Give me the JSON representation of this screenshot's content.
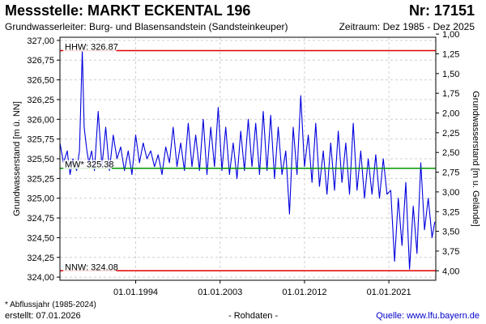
{
  "header": {
    "station": "Messstelle: MARKT ECKENTAL 196",
    "number": "Nr: 17151",
    "aquifer": "Grundwasserleiter:  Burg- und Blasensandstein (Sandsteinkeuper)",
    "period": "Zeitraum: Dez 1985 - Dez 2025"
  },
  "footer": {
    "note": "* Abflussjahr (1985-2024)",
    "created": "erstellt:  07.01.2026",
    "raw": "- Rohdaten -",
    "source": "Quelle: www.lfu.bayern.de"
  },
  "chart_data": {
    "type": "line",
    "ylabel": "Grundwasserstand [m ü. NN]",
    "y2label": "Grundwasserstand [m u. Gelände]",
    "ylim": [
      323.96,
      327.04
    ],
    "y2lim": [
      1.04,
      4.12
    ],
    "yticks": [
      324.0,
      324.25,
      324.5,
      324.75,
      325.0,
      325.25,
      325.5,
      325.75,
      326.0,
      326.25,
      326.5,
      326.75,
      327.0
    ],
    "ytick_labels": [
      "324,00",
      "324,25",
      "324,50",
      "324,75",
      "325,00",
      "325,25",
      "325,50",
      "325,75",
      "326,00",
      "326,25",
      "326,50",
      "326,75",
      "327,00"
    ],
    "y2ticks": [
      1.0,
      1.25,
      1.5,
      1.75,
      2.0,
      2.25,
      2.5,
      2.75,
      3.0,
      3.25,
      3.5,
      3.75,
      4.0
    ],
    "y2tick_labels": [
      "1,00",
      "1,25",
      "1,50",
      "1,75",
      "2,00",
      "2,25",
      "2,50",
      "2,75",
      "3,00",
      "3,25",
      "3,50",
      "3,75",
      "4,00"
    ],
    "xlim": [
      1985.92,
      2026.0
    ],
    "xticks": [
      1994.0,
      2003.0,
      2012.0,
      2021.0
    ],
    "xtick_labels": [
      "01.01.1994",
      "01.01.2003",
      "01.01.2012",
      "01.01.2021"
    ],
    "grid": true,
    "reference_lines": [
      {
        "label": "HHW: 326.87",
        "value": 326.87,
        "color": "#e00000"
      },
      {
        "label": "MW* 325.38",
        "value": 325.38,
        "color": "#009900"
      },
      {
        "label": "NNW: 324.08",
        "value": 324.08,
        "color": "#e00000"
      }
    ],
    "series": [
      {
        "color": "#0000dd",
        "x": [
          1985.92,
          1986.3,
          1986.7,
          1987.0,
          1987.3,
          1987.7,
          1988.0,
          1988.3,
          1988.5,
          1988.8,
          1989.0,
          1989.3,
          1989.6,
          1990.0,
          1990.4,
          1990.8,
          1991.2,
          1991.6,
          1992.0,
          1992.4,
          1992.8,
          1993.2,
          1993.6,
          1994.0,
          1994.4,
          1994.8,
          1995.2,
          1995.6,
          1996.0,
          1996.4,
          1996.8,
          1997.2,
          1997.6,
          1998.0,
          1998.4,
          1998.8,
          1999.2,
          1999.6,
          2000.0,
          2000.4,
          2000.8,
          2001.2,
          2001.6,
          2002.0,
          2002.4,
          2002.8,
          2003.2,
          2003.6,
          2004.0,
          2004.4,
          2004.8,
          2005.2,
          2005.6,
          2006.0,
          2006.4,
          2006.8,
          2007.2,
          2007.6,
          2008.0,
          2008.4,
          2008.8,
          2009.2,
          2009.6,
          2010.0,
          2010.4,
          2010.8,
          2011.2,
          2011.6,
          2012.0,
          2012.4,
          2012.8,
          2013.2,
          2013.6,
          2014.0,
          2014.4,
          2014.8,
          2015.2,
          2015.6,
          2016.0,
          2016.4,
          2016.8,
          2017.2,
          2017.6,
          2018.0,
          2018.4,
          2018.8,
          2019.2,
          2019.6,
          2020.0,
          2020.4,
          2020.8,
          2021.2,
          2021.6,
          2022.0,
          2022.4,
          2022.8,
          2023.2,
          2023.6,
          2024.0,
          2024.4,
          2024.8,
          2025.2,
          2025.6,
          2025.9
        ],
        "y": [
          325.7,
          325.45,
          325.6,
          325.3,
          325.5,
          325.35,
          325.6,
          326.87,
          325.9,
          325.6,
          325.45,
          325.6,
          325.35,
          326.1,
          325.4,
          325.9,
          325.35,
          325.8,
          325.5,
          325.65,
          325.35,
          325.6,
          325.3,
          325.8,
          325.45,
          325.7,
          325.5,
          325.6,
          325.4,
          325.55,
          325.3,
          325.65,
          325.45,
          325.9,
          325.4,
          325.7,
          325.35,
          325.95,
          325.4,
          325.8,
          325.35,
          326.0,
          325.3,
          325.9,
          325.4,
          326.15,
          325.35,
          325.9,
          325.3,
          325.7,
          325.25,
          325.85,
          325.35,
          326.0,
          325.4,
          325.95,
          325.3,
          326.1,
          325.35,
          326.05,
          325.25,
          325.9,
          325.3,
          325.6,
          324.8,
          325.9,
          325.3,
          326.3,
          325.4,
          325.8,
          325.2,
          325.95,
          325.15,
          325.6,
          325.05,
          325.7,
          325.1,
          325.85,
          325.2,
          325.7,
          325.05,
          325.95,
          325.1,
          325.6,
          325.0,
          325.5,
          325.05,
          325.55,
          325.0,
          325.5,
          325.05,
          325.1,
          324.2,
          325.0,
          324.4,
          325.2,
          324.1,
          324.9,
          324.3,
          325.45,
          324.6,
          325.0,
          324.5,
          324.7
        ]
      }
    ]
  }
}
